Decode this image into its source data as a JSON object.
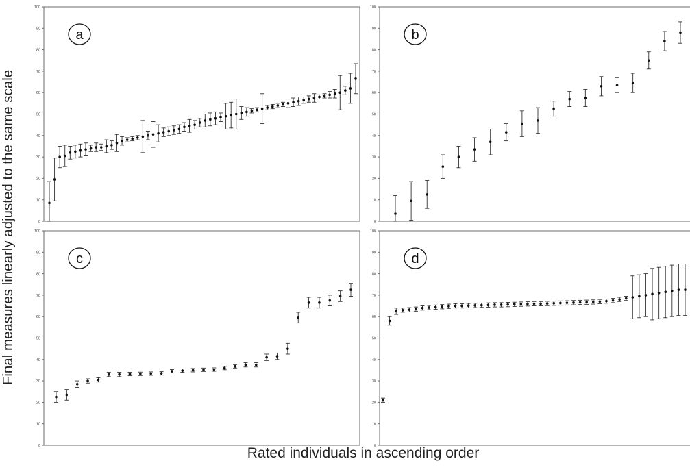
{
  "ylabel": "Final measures linearly adjusted to the same scale",
  "xlabel": "Rated individuals in ascending order",
  "chart_data": [
    {
      "panel": "a",
      "type": "scatter",
      "ylim": [
        0,
        100
      ],
      "yticks": [
        "0",
        "10",
        "20",
        "30",
        "40",
        "50",
        "60",
        "70",
        "80",
        "90",
        "100"
      ],
      "series": [
        {
          "y": [
            8.5,
            19.5,
            30,
            30.5,
            32,
            32.5,
            33,
            33.5,
            34,
            34.5,
            34.5,
            35,
            35.5,
            36.5,
            37.5,
            38,
            38.5,
            39,
            39.5,
            40,
            40.5,
            41,
            41.5,
            42,
            42.5,
            43,
            44,
            44.5,
            45,
            46,
            47,
            47.5,
            48,
            48.5,
            49,
            49.5,
            50,
            50.5,
            51,
            51.5,
            52,
            52.5,
            53,
            53.5,
            54,
            54.5,
            55,
            55.5,
            56,
            56.5,
            57,
            57.5,
            58,
            58.5,
            59,
            59.5,
            60,
            61,
            62,
            66.5
          ],
          "err": [
            10,
            10,
            5,
            5,
            3,
            3,
            3,
            3,
            1.5,
            2,
            1.5,
            3,
            2,
            4,
            2,
            1,
            1,
            1,
            7.5,
            2,
            6,
            4,
            2,
            2,
            2,
            2,
            2,
            3,
            2,
            2,
            3,
            3,
            3,
            2,
            6,
            6,
            7,
            3,
            2,
            1,
            1,
            7,
            1,
            1,
            1,
            1,
            2,
            2,
            2,
            1.5,
            1.5,
            2,
            1,
            1,
            1.5,
            2,
            8,
            2,
            7,
            7
          ]
        }
      ]
    },
    {
      "panel": "b",
      "type": "scatter",
      "ylim": [
        0,
        100
      ],
      "yticks": [
        "0",
        "10",
        "20",
        "30",
        "40",
        "50",
        "60",
        "70",
        "80",
        "90",
        "100"
      ],
      "series": [
        {
          "y": [
            3.5,
            9.5,
            12.5,
            25.5,
            30,
            33.5,
            37,
            41.5,
            45.5,
            47,
            52.5,
            57,
            57.5,
            63,
            63.5,
            64.5,
            75,
            84,
            88
          ],
          "err": [
            8.5,
            9,
            6.5,
            5.5,
            5,
            5.5,
            6,
            4,
            6,
            6,
            3.5,
            3.5,
            4,
            4.5,
            3.5,
            4.5,
            4,
            4.5,
            5
          ]
        }
      ]
    },
    {
      "panel": "c",
      "type": "scatter",
      "ylim": [
        0,
        100
      ],
      "yticks": [
        "0",
        "10",
        "20",
        "30",
        "40",
        "50",
        "60",
        "70",
        "80",
        "90",
        "100"
      ],
      "series": [
        {
          "y": [
            22.5,
            23.5,
            28.5,
            30,
            30.5,
            33,
            33,
            33.2,
            33.3,
            33.4,
            33.5,
            34.5,
            34.8,
            35,
            35.2,
            35.3,
            36,
            36.8,
            37.5,
            37.5,
            41,
            41.5,
            45,
            59.5,
            66.5,
            66.5,
            67.5,
            69.5,
            72.5
          ],
          "err": [
            2.5,
            2.5,
            1.5,
            1,
            1,
            1,
            1,
            0.8,
            0.8,
            0.8,
            0.8,
            0.8,
            0.8,
            0.8,
            0.8,
            0.8,
            0.8,
            0.8,
            1,
            1,
            1.5,
            1.5,
            2.5,
            2.5,
            2.5,
            2.5,
            2.5,
            2.5,
            3
          ]
        }
      ]
    },
    {
      "panel": "d",
      "type": "scatter",
      "ylim": [
        0,
        100
      ],
      "yticks": [
        "0",
        "10",
        "20",
        "30",
        "40",
        "50",
        "60",
        "70",
        "80",
        "90",
        "100"
      ],
      "series": [
        {
          "y": [
            21,
            58,
            62.5,
            63,
            63.2,
            63.5,
            64,
            64.2,
            64.4,
            64.6,
            64.8,
            65,
            65,
            65.1,
            65.2,
            65.3,
            65.4,
            65.5,
            65.5,
            65.6,
            65.7,
            65.8,
            65.9,
            66,
            66,
            66.1,
            66.2,
            66.3,
            66.4,
            66.5,
            66.6,
            66.7,
            66.8,
            67,
            67.2,
            67.5,
            68,
            68.5,
            69,
            69.5,
            70,
            70.5,
            71,
            71.5,
            72,
            72.5,
            72.5
          ],
          "err": [
            1,
            2,
            1.5,
            1,
            1,
            1,
            1,
            1,
            1,
            1,
            1,
            1,
            1,
            1,
            1,
            1,
            1,
            1,
            1,
            1,
            1,
            1,
            1,
            1,
            1,
            1,
            1,
            1,
            1,
            1,
            1,
            1,
            1,
            1,
            1,
            1,
            1,
            1,
            10,
            10,
            10,
            12,
            12,
            12,
            12,
            12,
            12
          ]
        }
      ]
    }
  ]
}
